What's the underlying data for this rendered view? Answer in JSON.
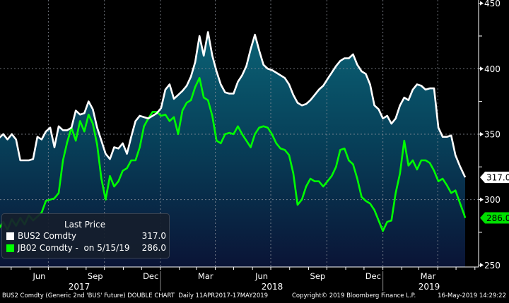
{
  "chart_data": {
    "type": "area",
    "title": "",
    "xlabel": "",
    "ylabel": "",
    "ylim": [
      250,
      450
    ],
    "yticks": [
      "250",
      "300",
      "350",
      "400",
      "450"
    ],
    "xtick_months": [
      "Jun",
      "Sep",
      "Dec",
      "Mar",
      "Jun",
      "Sep",
      "Dec",
      "Mar"
    ],
    "xtick_years": [
      "2017",
      "2018",
      "2019"
    ],
    "grid": true,
    "axis_side": "right",
    "legend": {
      "placement": "bottom-left",
      "title": "Last Price",
      "entries": [
        {
          "name": "BUS2 Comdty",
          "value": "317.0",
          "color": "#ffffff"
        },
        {
          "name": "JB02 Comdty -  on 5/15/19",
          "value": "286.0",
          "color": "#00ff00"
        }
      ]
    },
    "last_labels": [
      {
        "value": "317.0",
        "color": "#ffffff"
      },
      {
        "value": "286.0",
        "color": "#00ff00"
      }
    ],
    "dates": [
      "2017-04-11",
      "2017-04-18",
      "2017-04-25",
      "2017-05-02",
      "2017-05-09",
      "2017-05-16",
      "2017-05-23",
      "2017-05-30",
      "2017-06-06",
      "2017-06-13",
      "2017-06-20",
      "2017-06-27",
      "2017-07-04",
      "2017-07-11",
      "2017-07-18",
      "2017-07-25",
      "2017-08-01",
      "2017-08-08",
      "2017-08-15",
      "2017-08-22",
      "2017-08-29",
      "2017-09-05",
      "2017-09-12",
      "2017-09-19",
      "2017-09-26",
      "2017-10-03",
      "2017-10-10",
      "2017-10-17",
      "2017-10-24",
      "2017-10-31",
      "2017-11-07",
      "2017-11-14",
      "2017-11-21",
      "2017-11-28",
      "2017-12-05",
      "2017-12-12",
      "2017-12-19",
      "2017-12-26",
      "2018-01-02",
      "2018-01-09",
      "2018-01-16",
      "2018-01-23",
      "2018-01-30",
      "2018-02-06",
      "2018-02-13",
      "2018-02-20",
      "2018-02-27",
      "2018-03-06",
      "2018-03-13",
      "2018-03-20",
      "2018-03-27",
      "2018-04-03",
      "2018-04-10",
      "2018-04-17",
      "2018-04-24",
      "2018-05-01",
      "2018-05-08",
      "2018-05-15",
      "2018-05-22",
      "2018-05-29",
      "2018-06-05",
      "2018-06-12",
      "2018-06-19",
      "2018-06-26",
      "2018-07-03",
      "2018-07-10",
      "2018-07-17",
      "2018-07-24",
      "2018-07-31",
      "2018-08-07",
      "2018-08-14",
      "2018-08-21",
      "2018-08-28",
      "2018-09-04",
      "2018-09-11",
      "2018-09-18",
      "2018-09-25",
      "2018-10-02",
      "2018-10-09",
      "2018-10-16",
      "2018-10-23",
      "2018-10-30",
      "2018-11-06",
      "2018-11-13",
      "2018-11-20",
      "2018-11-27",
      "2018-12-04",
      "2018-12-11",
      "2018-12-18",
      "2018-12-25",
      "2019-01-01",
      "2019-01-08",
      "2019-01-15",
      "2019-01-22",
      "2019-01-29",
      "2019-02-05",
      "2019-02-12",
      "2019-02-19",
      "2019-02-26",
      "2019-03-05",
      "2019-03-12",
      "2019-03-19",
      "2019-03-26",
      "2019-04-02",
      "2019-04-09",
      "2019-04-16",
      "2019-04-23",
      "2019-04-30",
      "2019-05-07",
      "2019-05-14",
      "2019-05-16"
    ],
    "series": [
      {
        "name": "BUS2 Comdty",
        "color": "#ffffff",
        "filled": true,
        "values": [
          347,
          350,
          346,
          350,
          346,
          330,
          330,
          330,
          331,
          348,
          346,
          352,
          355,
          340,
          356,
          353,
          353,
          355,
          368,
          365,
          366,
          375,
          369,
          355,
          345,
          335,
          331,
          340,
          339,
          343,
          335,
          348,
          360,
          364,
          363,
          362,
          364,
          366,
          370,
          384,
          388,
          377,
          380,
          383,
          387,
          394,
          405,
          425,
          410,
          428,
          410,
          398,
          388,
          382,
          381,
          381,
          390,
          395,
          402,
          415,
          426,
          414,
          403,
          400,
          399,
          397,
          395,
          393,
          388,
          380,
          374,
          372,
          373,
          376,
          380,
          384,
          387,
          392,
          397,
          402,
          406,
          408,
          408,
          411,
          403,
          398,
          396,
          388,
          372,
          369,
          362,
          364,
          358,
          362,
          372,
          378,
          376,
          384,
          388,
          387,
          384,
          385,
          385,
          355,
          348,
          348,
          349,
          334,
          326,
          319,
          317
        ]
      },
      {
        "name": "JB02 Comdty -  on 5/15/19",
        "color": "#00ff00",
        "filled": false,
        "values": [
          278,
          283,
          277,
          285,
          280,
          286,
          281,
          288,
          284,
          287,
          290,
          299,
          300,
          301,
          305,
          330,
          344,
          355,
          345,
          360,
          352,
          365,
          358,
          342,
          316,
          300,
          318,
          310,
          314,
          322,
          324,
          330,
          330,
          340,
          356,
          362,
          367,
          367,
          364,
          365,
          360,
          363,
          350,
          368,
          374,
          376,
          386,
          393,
          378,
          376,
          364,
          345,
          343,
          350,
          351,
          350,
          356,
          350,
          345,
          340,
          350,
          355,
          356,
          355,
          350,
          343,
          339,
          338,
          334,
          320,
          296,
          300,
          310,
          316,
          314,
          314,
          310,
          314,
          318,
          325,
          338,
          339,
          330,
          327,
          316,
          302,
          299,
          297,
          292,
          284,
          276,
          283,
          284,
          305,
          320,
          345,
          326,
          330,
          323,
          330,
          330,
          328,
          322,
          314,
          316,
          311,
          305,
          307,
          298,
          289,
          286
        ]
      }
    ]
  },
  "footer": {
    "left": "BUS2 Comdty (Generic 2nd 'BUS' Future) DOUBLE CHART  Daily 11APR2017-17MAY2019",
    "copyright": "Copyright© 2019 Bloomberg Finance L.P.",
    "timestamp": "16-May-2019 14:29:22"
  }
}
